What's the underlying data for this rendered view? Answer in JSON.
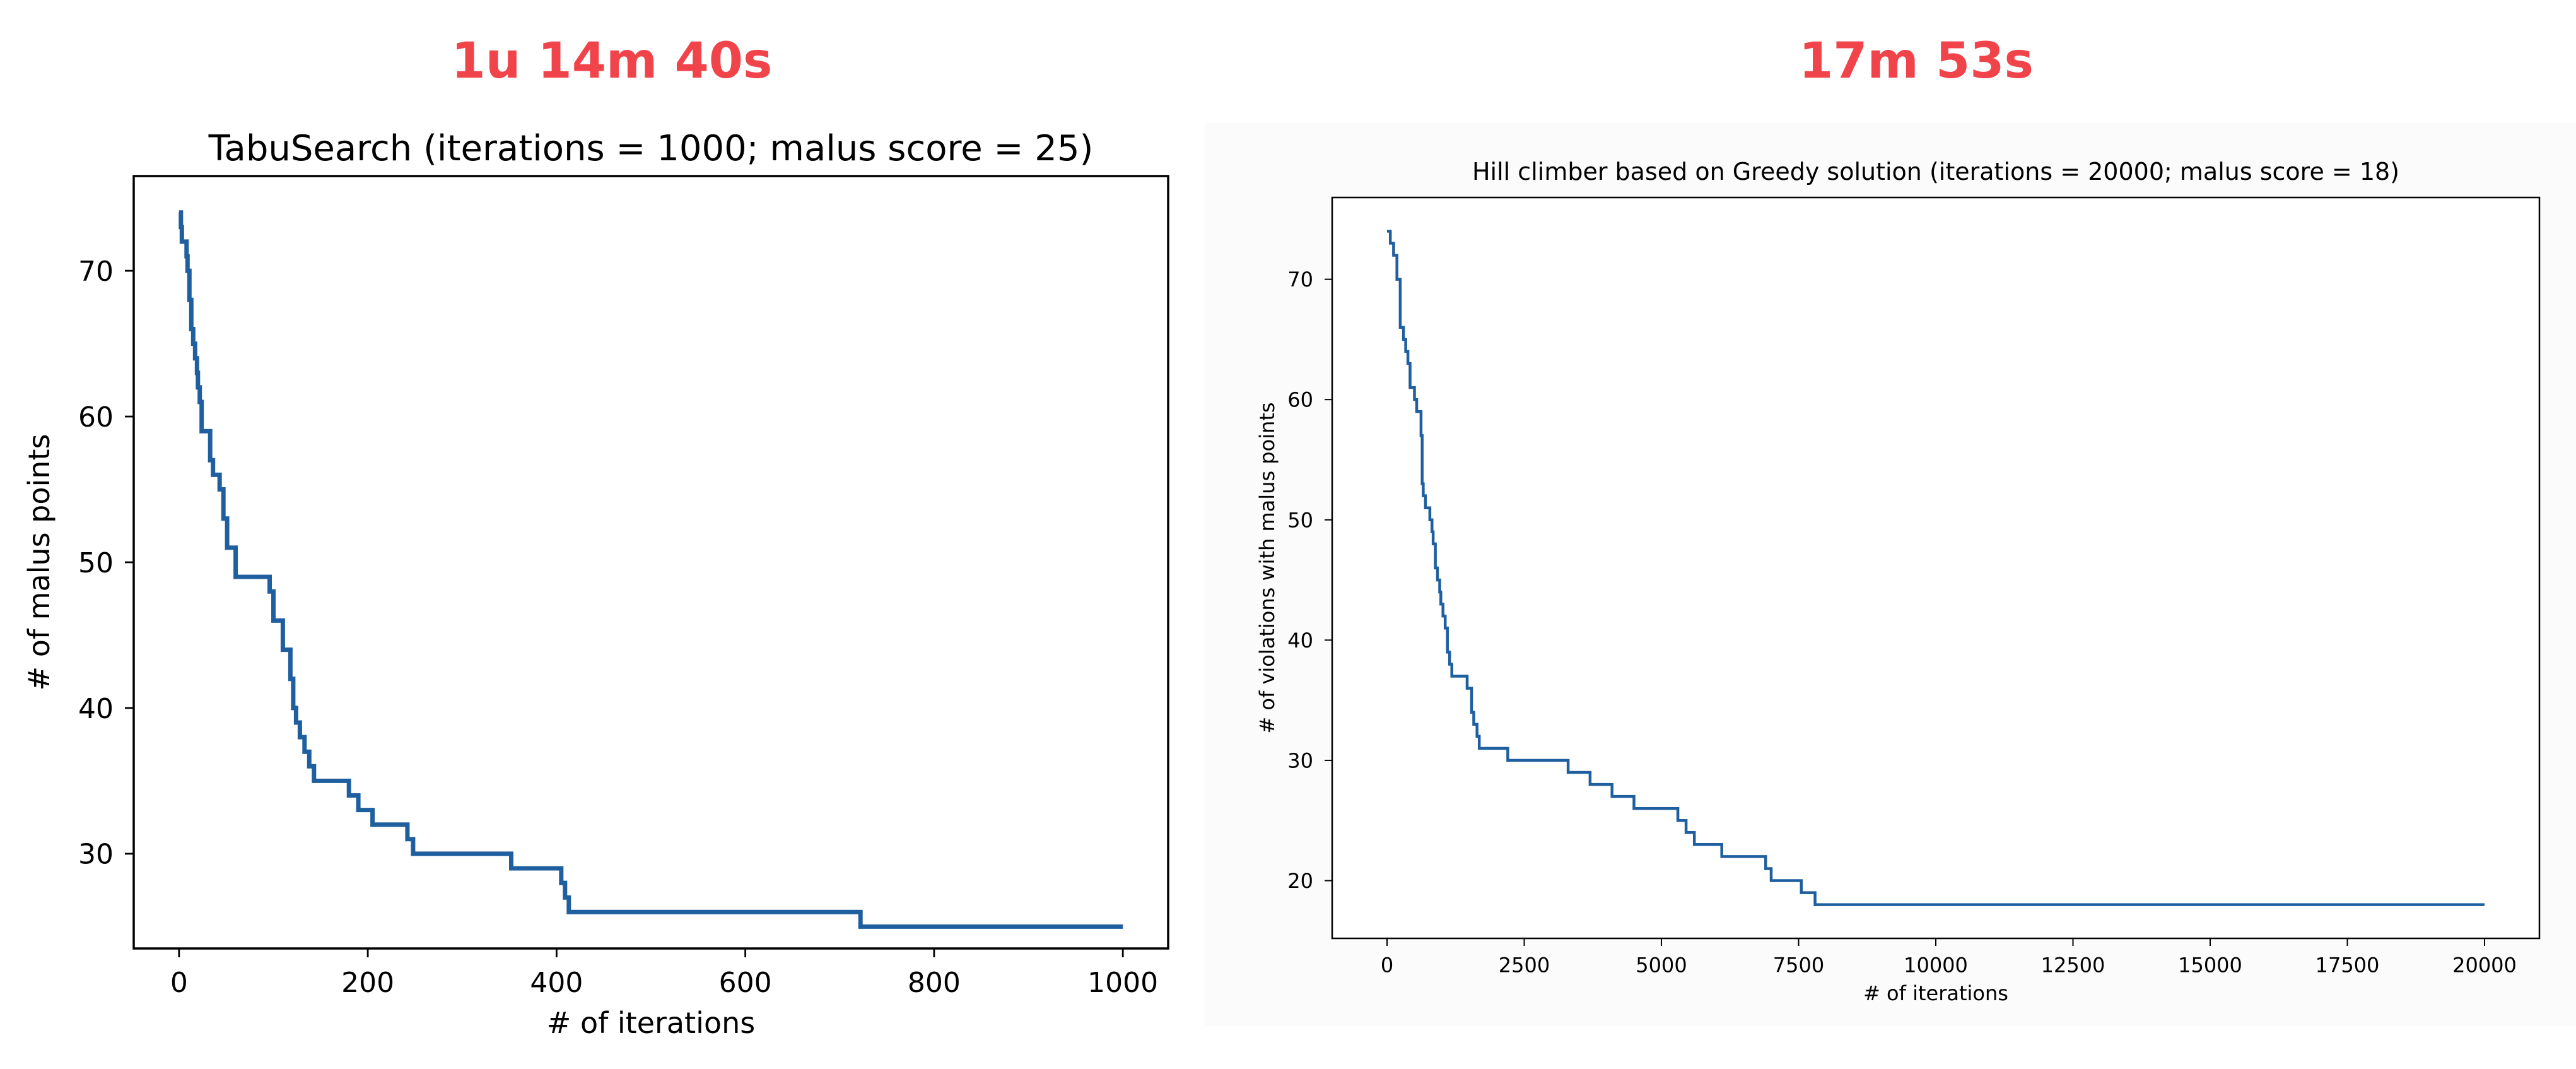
{
  "timers": {
    "left": "1u 14m 40s",
    "right": "17m 53s"
  },
  "colors": {
    "timer": "#f0434a",
    "line": "#1f5f9f"
  },
  "chart_data": [
    {
      "type": "line",
      "title": "TabuSearch (iterations = 1000; malus score = 25)",
      "xlabel": "# of iterations",
      "ylabel": "# of malus points",
      "xlim": [
        -48,
        1048
      ],
      "ylim": [
        23.5,
        76.5
      ],
      "xticks": [
        0,
        200,
        400,
        600,
        800,
        1000
      ],
      "yticks": [
        30,
        40,
        50,
        60,
        70
      ],
      "step": true,
      "series": [
        {
          "x": [
            0,
            2,
            3,
            5,
            8,
            9,
            11,
            13,
            15,
            17,
            19,
            20,
            22,
            24,
            26,
            28,
            30,
            33,
            36,
            40,
            43,
            47,
            51,
            53,
            56,
            60,
            63,
            70,
            96,
            100,
            110,
            118,
            121,
            124,
            128,
            133,
            138,
            143,
            148,
            180,
            190,
            205,
            212,
            242,
            248,
            252,
            352,
            352,
            405,
            409,
            413,
            719,
            722,
            1000
          ],
          "y": [
            74,
            73,
            72,
            72,
            71,
            70,
            68,
            66,
            65,
            64,
            63,
            62,
            61,
            59,
            59,
            59,
            59,
            57,
            56,
            56,
            55,
            53,
            51,
            51,
            51,
            49,
            49,
            49,
            48,
            46,
            44,
            42,
            40,
            39,
            38,
            37,
            36,
            35,
            35,
            34,
            33,
            32,
            32,
            31,
            30,
            30,
            29,
            29,
            28,
            27,
            26,
            26,
            25,
            25
          ]
        }
      ]
    },
    {
      "type": "line",
      "title": "Hill climber based on Greedy solution (iterations = 20000; malus score = 18)",
      "xlabel": "# of iterations",
      "ylabel": "# of violations with malus points",
      "xlim": [
        -1000,
        21000
      ],
      "ylim": [
        15.2,
        76.8
      ],
      "xticks": [
        0,
        2500,
        5000,
        7500,
        10000,
        12500,
        15000,
        17500,
        20000
      ],
      "yticks": [
        20,
        30,
        40,
        50,
        60,
        70
      ],
      "step": true,
      "series": [
        {
          "x": [
            0,
            60,
            120,
            180,
            180,
            240,
            300,
            340,
            380,
            420,
            460,
            500,
            540,
            600,
            620,
            640,
            660,
            700,
            740,
            780,
            820,
            840,
            880,
            920,
            960,
            980,
            1020,
            1060,
            1100,
            1140,
            1180,
            1220,
            1260,
            1300,
            1460,
            1540,
            1580,
            1640,
            1680,
            1720,
            2200,
            3300,
            3300,
            3700,
            4100,
            4100,
            4500,
            5300,
            5300,
            5450,
            5600,
            6100,
            6850,
            6900,
            7000,
            7550,
            7800,
            20000
          ],
          "y": [
            74,
            73,
            72,
            71,
            70,
            66,
            65,
            64,
            63,
            61,
            61,
            60,
            59,
            59,
            57,
            53,
            52,
            51,
            51,
            50,
            49,
            48,
            46,
            45,
            44,
            43,
            42,
            41,
            39,
            38,
            37,
            37,
            37,
            37,
            36,
            34,
            33,
            32,
            31,
            31,
            30,
            30,
            29,
            28,
            28,
            27,
            26,
            26,
            25,
            24,
            23,
            22,
            22,
            21,
            20,
            19,
            18,
            18
          ]
        }
      ]
    }
  ]
}
